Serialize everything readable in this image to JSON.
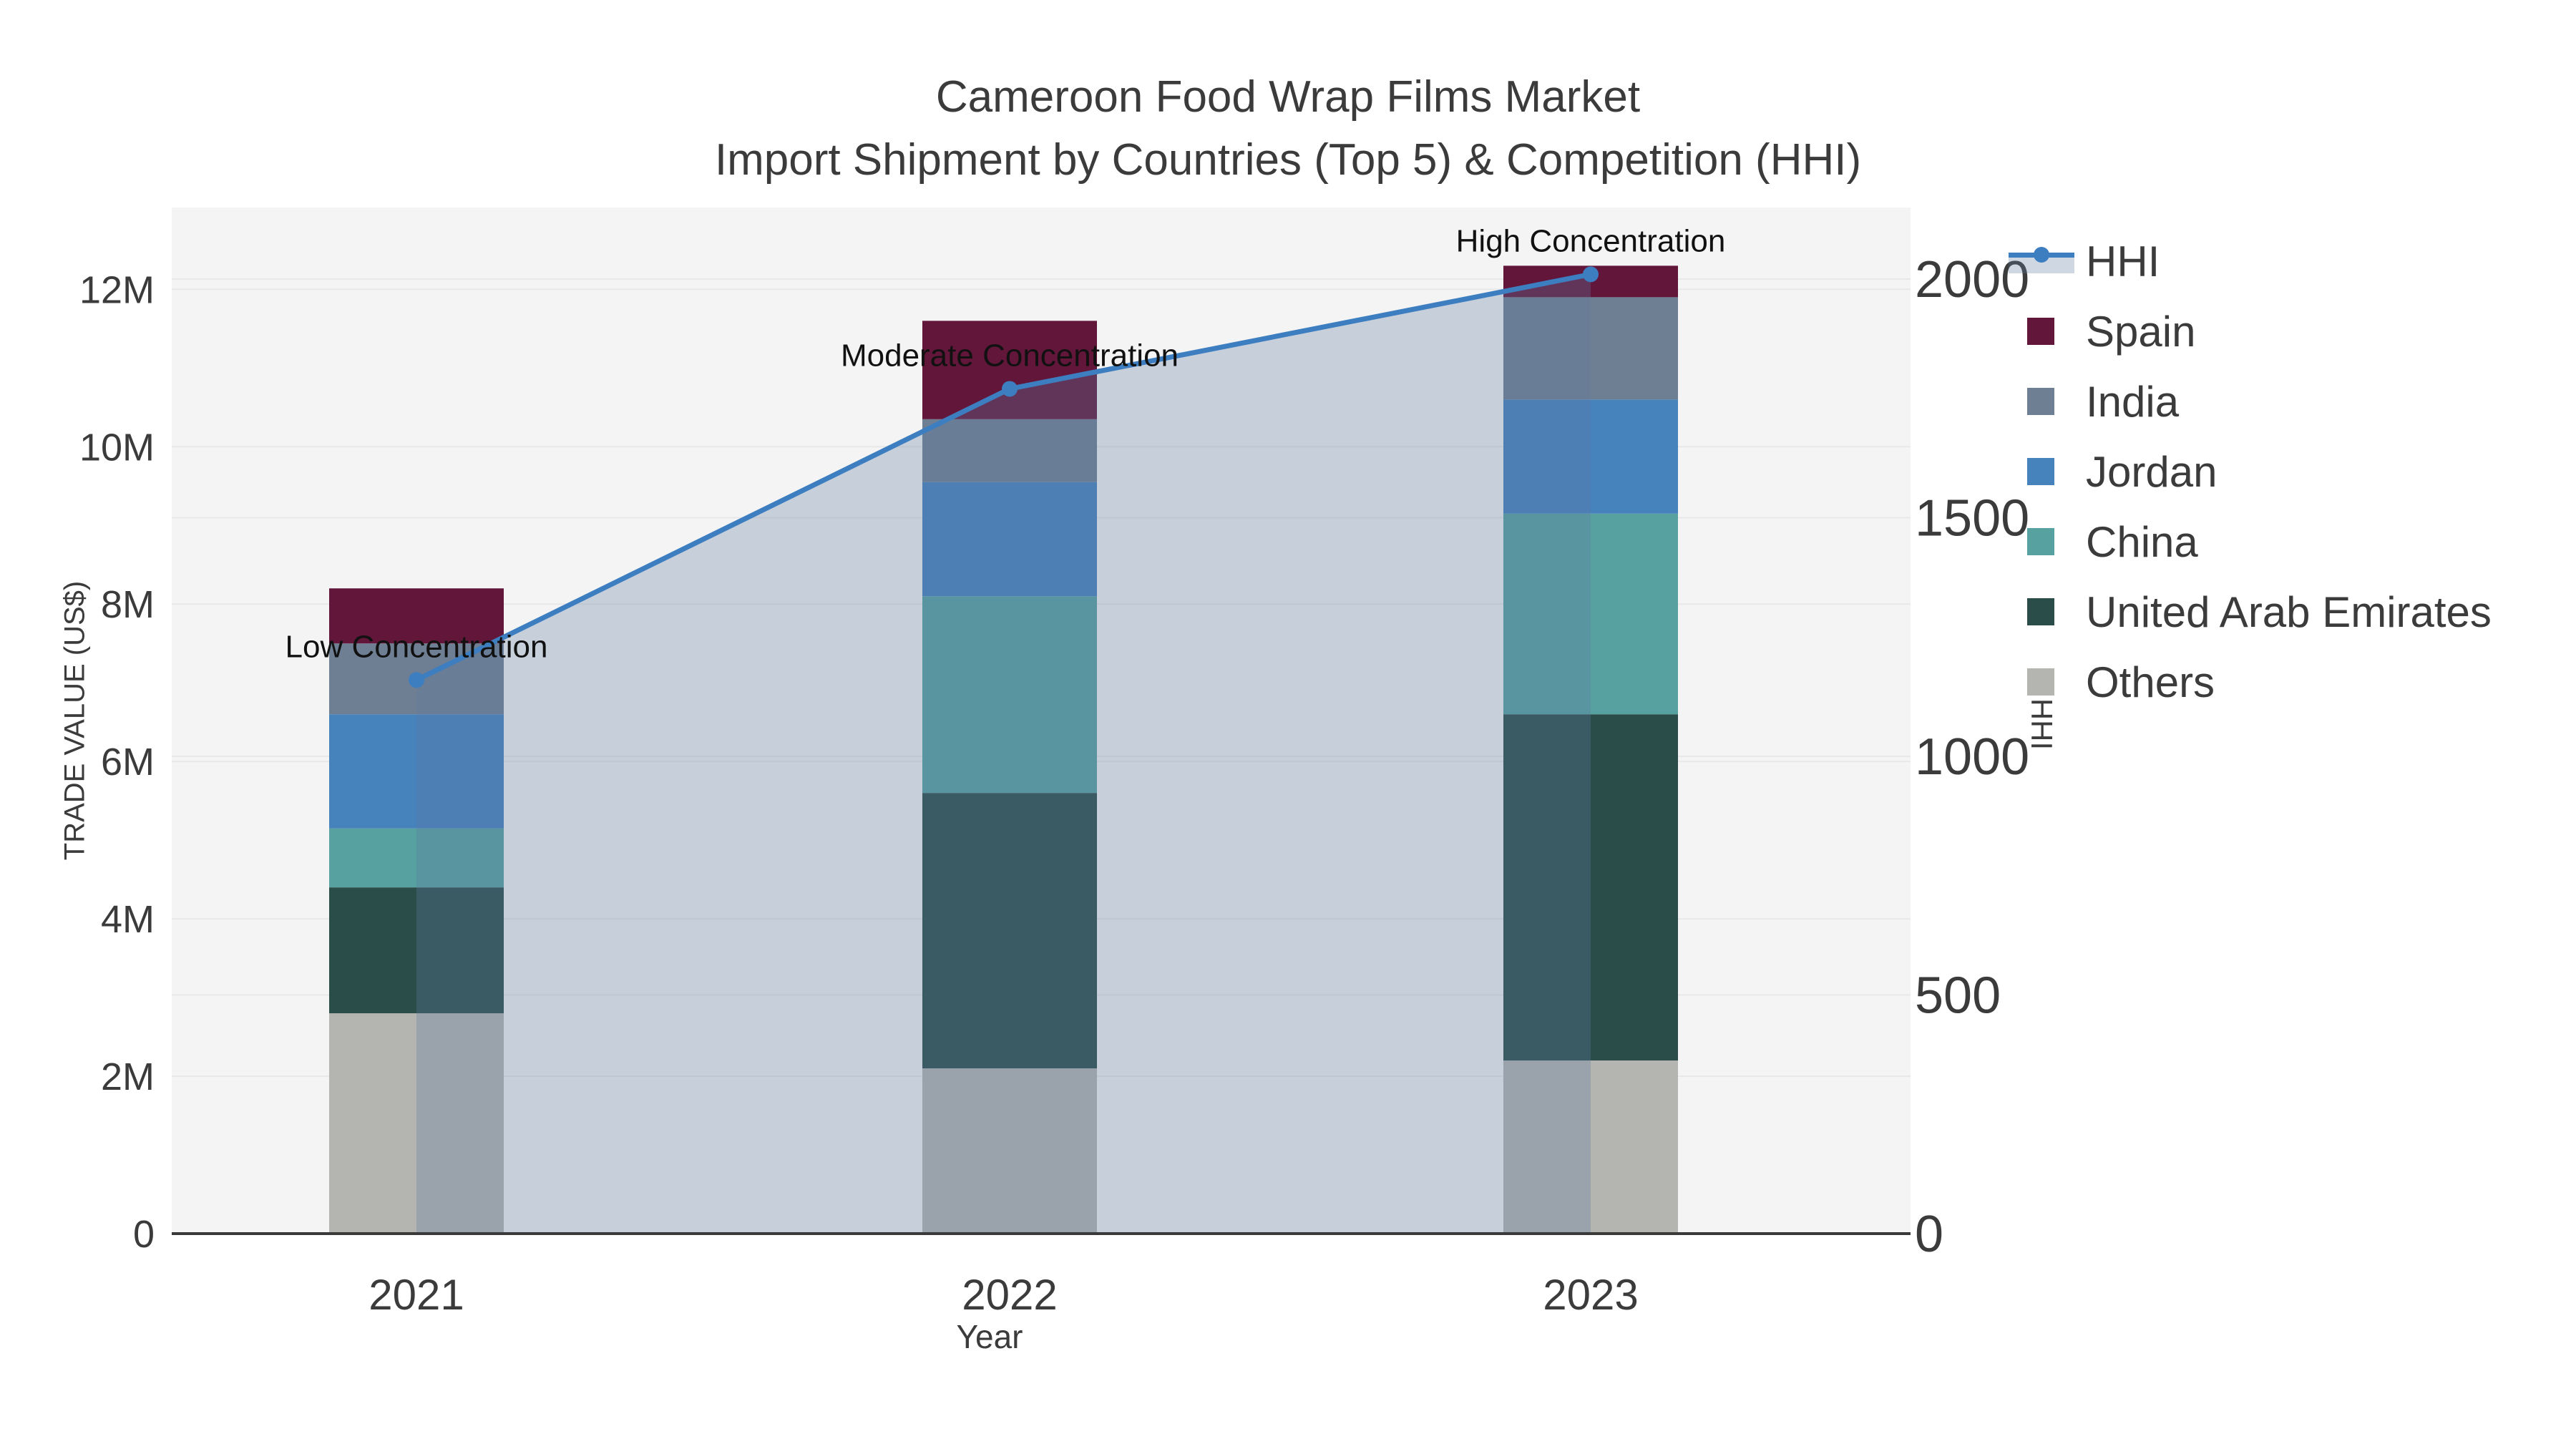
{
  "chart_data": {
    "type": "stacked-bar+line",
    "title1": "Cameroon Food Wrap Films Market",
    "title2": "Import Shipment by Countries (Top 5) & Competition (HHI)",
    "xlabel": "Year",
    "ylabel": "TRADE VALUE (US$)",
    "y2label": "HHI",
    "values_unit": "millions US$",
    "categories": [
      "2021",
      "2022",
      "2023"
    ],
    "stack_series": [
      {
        "name": "Others",
        "color": "#b4b5b1",
        "values": [
          2.8,
          2.1,
          2.2
        ]
      },
      {
        "name": "United Arab Emirates",
        "color": "#2a4d4a",
        "values": [
          1.6,
          3.5,
          4.4
        ]
      },
      {
        "name": "China",
        "color": "#57a1a1",
        "values": [
          0.75,
          2.5,
          2.55
        ]
      },
      {
        "name": "Jordan",
        "color": "#4682bc",
        "values": [
          1.45,
          1.45,
          1.45
        ]
      },
      {
        "name": "India",
        "color": "#6e7f93",
        "values": [
          0.9,
          0.8,
          1.3
        ]
      },
      {
        "name": "Spain",
        "color": "#62163a",
        "values": [
          0.7,
          1.25,
          0.4
        ]
      }
    ],
    "line_series": {
      "name": "HHI",
      "color": "#3d7ec0",
      "area_color": "rgba(96,123,163,0.30)",
      "values": [
        1160,
        1770,
        2010
      ],
      "annotations": [
        "Low Concentration",
        "Moderate Concentration",
        "High Concentration"
      ]
    },
    "yticks": {
      "values": [
        0,
        2,
        4,
        6,
        8,
        10,
        12
      ],
      "labels": [
        "0",
        "2M",
        "4M",
        "6M",
        "8M",
        "10M",
        "12M"
      ]
    },
    "y2ticks": {
      "values": [
        0,
        500,
        1000,
        1500,
        2000
      ],
      "labels": [
        "0",
        "500",
        "1000",
        "1500",
        "2000"
      ]
    },
    "ylim": [
      0,
      13.04
    ],
    "y2lim": [
      0,
      2150
    ],
    "grid": true,
    "legend_position": "right",
    "legend": [
      "HHI",
      "Spain",
      "India",
      "Jordan",
      "China",
      "United Arab Emirates",
      "Others"
    ],
    "colors": {
      "plot_bg": "#f4f4f4",
      "grid": "#e8e8e8",
      "axis_line": "#3a3a3a",
      "text": "#3b3b3b",
      "annotation": "#111111"
    }
  }
}
